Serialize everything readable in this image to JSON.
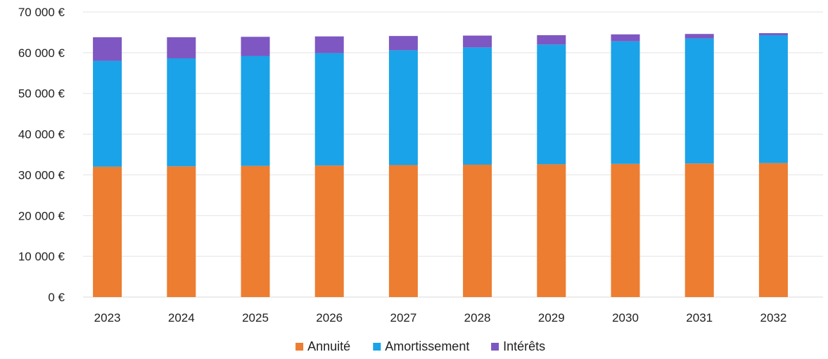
{
  "chart_data": {
    "type": "bar",
    "stacked": true,
    "title": "",
    "xlabel": "",
    "ylabel": "",
    "categories": [
      "2023",
      "2024",
      "2025",
      "2026",
      "2027",
      "2028",
      "2029",
      "2030",
      "2031",
      "2032"
    ],
    "series": [
      {
        "name": "Annuité",
        "color": "#ED7D31",
        "values": [
          32000,
          32100,
          32200,
          32300,
          32400,
          32500,
          32600,
          32700,
          32800,
          32900
        ]
      },
      {
        "name": "Amortissement",
        "color": "#1AA3E8",
        "values": [
          26000,
          26500,
          27000,
          27600,
          28200,
          28800,
          29400,
          30100,
          30700,
          31400
        ]
      },
      {
        "name": "Intérêts",
        "color": "#7E57C2",
        "values": [
          5800,
          5200,
          4700,
          4100,
          3500,
          2900,
          2300,
          1700,
          1100,
          500
        ]
      }
    ],
    "ylim": [
      0,
      70000
    ],
    "yticks": [
      0,
      10000,
      20000,
      30000,
      40000,
      50000,
      60000,
      70000
    ],
    "ytick_labels": [
      "0 €",
      "10 000 €",
      "20 000 €",
      "30 000 €",
      "40 000 €",
      "50 000 €",
      "60 000 €",
      "70 000 €"
    ],
    "grid": true,
    "legend_position": "bottom"
  }
}
